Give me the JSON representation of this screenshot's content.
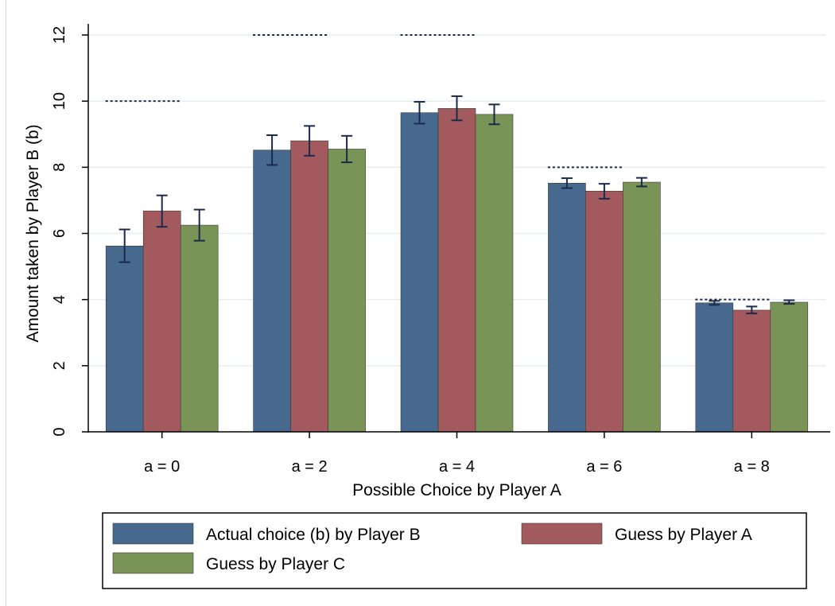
{
  "chart_data": {
    "type": "bar",
    "title": "",
    "xlabel": "Possible Choice by Player A",
    "ylabel": "Amount taken by Player B (b)",
    "categories": [
      "a = 0",
      "a = 2",
      "a = 4",
      "a = 6",
      "a = 8"
    ],
    "ylim": [
      0,
      12
    ],
    "yticks": [
      0,
      2,
      4,
      6,
      8,
      10,
      12
    ],
    "grid": true,
    "legend_position": "bottom",
    "series": [
      {
        "name": "Actual choice (b) by Player B",
        "color": "#46698d",
        "values": [
          5.62,
          8.52,
          9.65,
          7.52,
          3.9
        ],
        "error_low": [
          5.13,
          8.07,
          9.32,
          7.37,
          3.84
        ],
        "error_high": [
          6.12,
          8.97,
          9.98,
          7.67,
          3.96
        ]
      },
      {
        "name": "Guess by Player A",
        "color": "#a35a5f",
        "values": [
          6.68,
          8.8,
          9.78,
          7.28,
          3.68
        ],
        "error_low": [
          6.2,
          8.35,
          9.42,
          7.05,
          3.58
        ],
        "error_high": [
          7.15,
          9.25,
          10.15,
          7.5,
          3.79
        ]
      },
      {
        "name": "Guess by Player C",
        "color": "#7a9357",
        "values": [
          6.25,
          8.55,
          9.6,
          7.55,
          3.92
        ],
        "error_low": [
          5.78,
          8.15,
          9.3,
          7.42,
          3.87
        ],
        "error_high": [
          6.72,
          8.95,
          9.9,
          7.68,
          3.98
        ]
      }
    ],
    "reference_lines": {
      "style": "dotted",
      "values": [
        10,
        12,
        12,
        8,
        4
      ]
    }
  }
}
